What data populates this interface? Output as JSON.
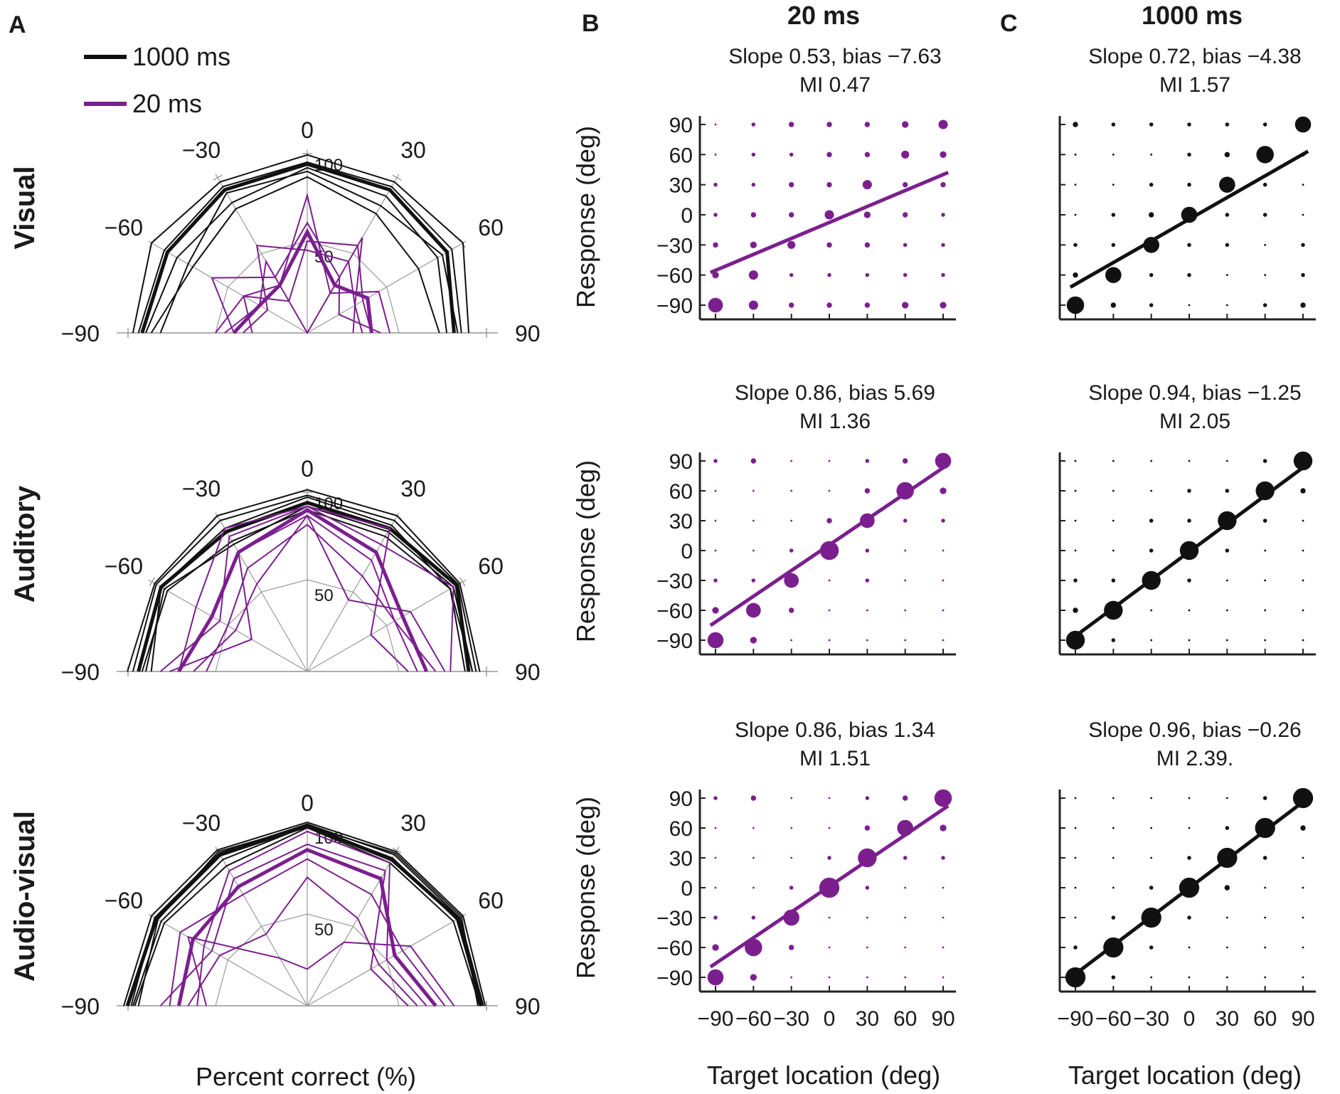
{
  "panel_labels": [
    "A",
    "B",
    "C"
  ],
  "column_titles": {
    "b": "20 ms",
    "c": "1000 ms"
  },
  "row_labels": [
    "Visual",
    "Auditory",
    "Audio-visual"
  ],
  "legend": {
    "items": [
      {
        "label": "1000 ms",
        "color": "#111111"
      },
      {
        "label": "20 ms",
        "color": "#7b1f8e"
      }
    ]
  },
  "colors": {
    "condition_1000ms": "#111111",
    "condition_20ms": "#7b1f8e",
    "grid": "#9a9a9a"
  },
  "polar_axis": {
    "angle_labels": [
      "0",
      "-30",
      "30",
      "-60",
      "60",
      "-90",
      "90"
    ],
    "radial_labels": [
      "100",
      "50"
    ],
    "xlabel": "Percent correct (%)"
  },
  "scatter_axis": {
    "ticks": [
      "-90",
      "-60",
      "-30",
      "0",
      "30",
      "60",
      "90"
    ],
    "ylabel": "Response (deg)",
    "xlabel": "Target location (deg)"
  },
  "chart_data": [
    {
      "type": "line",
      "coords": "polar",
      "panel": "A",
      "row": "Visual",
      "angles": [
        -90,
        -60,
        -30,
        0,
        30,
        60,
        90
      ],
      "rlim": [
        0,
        100
      ],
      "series": [
        {
          "name": "1000 ms",
          "kind": "mean",
          "values": [
            90,
            88,
            90,
            92,
            90,
            88,
            80
          ]
        },
        {
          "kind": "individual",
          "condition": "1000 ms",
          "values": [
            95,
            98,
            95,
            97,
            95,
            98,
            88
          ]
        },
        {
          "kind": "individual",
          "condition": "1000 ms",
          "values": [
            92,
            90,
            92,
            93,
            92,
            91,
            84
          ]
        },
        {
          "kind": "individual",
          "condition": "1000 ms",
          "values": [
            88,
            82,
            82,
            90,
            86,
            82,
            76
          ]
        },
        {
          "kind": "individual",
          "condition": "1000 ms",
          "values": [
            85,
            72,
            78,
            85,
            75,
            70,
            72
          ]
        },
        {
          "kind": "individual",
          "condition": "1000 ms",
          "values": [
            80,
            75,
            88,
            88,
            80,
            85,
            82
          ]
        },
        {
          "name": "20 ms",
          "kind": "mean",
          "values": [
            40,
            30,
            30,
            55,
            30,
            38,
            35
          ]
        },
        {
          "kind": "individual",
          "condition": "20 ms",
          "values": [
            35,
            25,
            55,
            45,
            45,
            30,
            30
          ]
        },
        {
          "kind": "individual",
          "condition": "20 ms",
          "values": [
            50,
            40,
            30,
            75,
            25,
            45,
            45
          ]
        },
        {
          "kind": "individual",
          "condition": "20 ms",
          "values": [
            30,
            40,
            20,
            50,
            55,
            35,
            35
          ]
        },
        {
          "kind": "individual",
          "condition": "20 ms",
          "values": [
            40,
            60,
            35,
            60,
            35,
            20,
            40
          ]
        },
        {
          "kind": "individual",
          "condition": "20 ms",
          "values": [
            45,
            30,
            45,
            0,
            60,
            30,
            25
          ]
        }
      ]
    },
    {
      "type": "line",
      "coords": "polar",
      "panel": "A",
      "row": "Auditory",
      "angles": [
        -90,
        -60,
        -30,
        0,
        30,
        60,
        90
      ],
      "rlim": [
        0,
        100
      ],
      "series": [
        {
          "name": "1000 ms",
          "kind": "mean",
          "values": [
            92,
            92,
            88,
            92,
            90,
            94,
            88
          ]
        },
        {
          "kind": "individual",
          "condition": "1000 ms",
          "values": [
            98,
            96,
            98,
            99,
            98,
            96,
            94
          ]
        },
        {
          "kind": "individual",
          "condition": "1000 ms",
          "values": [
            95,
            95,
            95,
            96,
            95,
            95,
            92
          ]
        },
        {
          "kind": "individual",
          "condition": "1000 ms",
          "values": [
            88,
            90,
            80,
            90,
            88,
            92,
            90
          ]
        },
        {
          "kind": "individual",
          "condition": "1000 ms",
          "values": [
            90,
            88,
            82,
            88,
            85,
            90,
            86
          ]
        },
        {
          "kind": "individual",
          "condition": "1000 ms",
          "values": [
            85,
            92,
            90,
            95,
            92,
            90,
            90
          ]
        },
        {
          "name": "20 ms",
          "kind": "mean",
          "values": [
            70,
            60,
            75,
            88,
            75,
            60,
            65
          ]
        },
        {
          "kind": "individual",
          "condition": "20 ms",
          "values": [
            62,
            45,
            55,
            85,
            70,
            55,
            60
          ]
        },
        {
          "kind": "individual",
          "condition": "20 ms",
          "values": [
            70,
            70,
            90,
            90,
            90,
            40,
            55
          ]
        },
        {
          "kind": "individual",
          "condition": "20 ms",
          "values": [
            55,
            50,
            65,
            80,
            60,
            55,
            70
          ]
        },
        {
          "kind": "individual",
          "condition": "20 ms",
          "values": [
            75,
            35,
            75,
            85,
            45,
            65,
            75
          ]
        },
        {
          "kind": "individual",
          "condition": "20 ms",
          "values": [
            80,
            55,
            85,
            90,
            80,
            92,
            78
          ]
        }
      ]
    },
    {
      "type": "line",
      "coords": "polar",
      "panel": "A",
      "row": "Audio-visual",
      "angles": [
        -90,
        -60,
        -30,
        0,
        30,
        60,
        90
      ],
      "rlim": [
        0,
        100
      ],
      "series": [
        {
          "name": "1000 ms",
          "kind": "mean",
          "values": [
            98,
            95,
            95,
            98,
            92,
            95,
            95
          ]
        },
        {
          "kind": "individual",
          "condition": "1000 ms",
          "values": [
            100,
            98,
            98,
            100,
            97,
            98,
            97
          ]
        },
        {
          "kind": "individual",
          "condition": "1000 ms",
          "values": [
            96,
            96,
            96,
            99,
            95,
            96,
            96
          ]
        },
        {
          "kind": "individual",
          "condition": "1000 ms",
          "values": [
            94,
            90,
            88,
            97,
            90,
            92,
            94
          ]
        },
        {
          "kind": "individual",
          "condition": "1000 ms",
          "values": [
            95,
            92,
            92,
            98,
            93,
            94,
            95
          ]
        },
        {
          "kind": "individual",
          "condition": "1000 ms",
          "values": [
            92,
            94,
            97,
            98,
            96,
            97,
            93
          ]
        },
        {
          "name": "20 ms",
          "kind": "mean",
          "values": [
            70,
            72,
            75,
            85,
            80,
            55,
            70
          ]
        },
        {
          "kind": "individual",
          "condition": "20 ms",
          "values": [
            60,
            65,
            85,
            95,
            90,
            50,
            65
          ]
        },
        {
          "kind": "individual",
          "condition": "20 ms",
          "values": [
            75,
            80,
            70,
            80,
            70,
            60,
            75
          ]
        },
        {
          "kind": "individual",
          "condition": "20 ms",
          "values": [
            65,
            55,
            45,
            70,
            55,
            45,
            60
          ]
        },
        {
          "kind": "individual",
          "condition": "20 ms",
          "values": [
            80,
            60,
            80,
            88,
            85,
            40,
            55
          ]
        },
        {
          "kind": "individual",
          "condition": "20 ms",
          "values": [
            55,
            75,
            30,
            20,
            40,
            65,
            80
          ]
        }
      ]
    },
    {
      "type": "scatter",
      "panel": "B",
      "row": "Visual",
      "condition": "20 ms",
      "title_lines": [
        "Slope 0.53, bias −7.63",
        "MI 0.47"
      ],
      "xlim": [
        -90,
        90
      ],
      "ylim": [
        -90,
        90
      ],
      "fit": {
        "slope": 0.53,
        "bias": -7.63
      },
      "x": [
        -90,
        -60,
        -30,
        0,
        30,
        60,
        90
      ],
      "y": [
        -90,
        -60,
        -30,
        0,
        30,
        60,
        90
      ],
      "counts": [
        [
          9,
          5,
          2,
          2,
          2,
          3,
          3
        ],
        [
          3,
          5,
          1,
          1,
          1,
          1,
          1
        ],
        [
          2,
          3,
          4,
          2,
          2,
          1,
          1
        ],
        [
          1,
          2,
          2,
          5,
          3,
          2,
          1
        ],
        [
          1,
          1,
          2,
          2,
          5,
          2,
          2
        ],
        [
          0,
          1,
          1,
          2,
          2,
          4,
          3
        ],
        [
          0,
          1,
          2,
          2,
          2,
          3,
          5
        ]
      ]
    },
    {
      "type": "scatter",
      "panel": "B",
      "row": "Auditory",
      "condition": "20 ms",
      "title_lines": [
        "Slope 0.86,  bias 5.69",
        "MI 1.36"
      ],
      "xlim": [
        -90,
        90
      ],
      "ylim": [
        -90,
        90
      ],
      "fit": {
        "slope": 0.86,
        "bias": 5.69
      },
      "x": [
        -90,
        -60,
        -30,
        0,
        30,
        60,
        90
      ],
      "y": [
        -90,
        -60,
        -30,
        0,
        30,
        60,
        90
      ],
      "counts": [
        [
          10,
          3,
          0,
          0,
          0,
          0,
          0
        ],
        [
          3,
          9,
          2,
          0,
          0,
          0,
          0
        ],
        [
          1,
          1,
          9,
          0,
          1,
          0,
          0
        ],
        [
          0,
          0,
          1,
          12,
          1,
          0,
          0
        ],
        [
          0,
          0,
          0,
          2,
          9,
          1,
          1
        ],
        [
          0,
          0,
          0,
          0,
          2,
          11,
          3
        ],
        [
          1,
          2,
          0,
          0,
          1,
          2,
          10
        ]
      ]
    },
    {
      "type": "scatter",
      "panel": "B",
      "row": "Audio-visual",
      "condition": "20 ms",
      "title_lines": [
        "Slope 0.86, bias 1.34",
        "MI 1.51"
      ],
      "xlim": [
        -90,
        90
      ],
      "ylim": [
        -90,
        90
      ],
      "fit": {
        "slope": 0.86,
        "bias": 1.34
      },
      "x": [
        -90,
        -60,
        -30,
        0,
        30,
        60,
        90
      ],
      "y": [
        -90,
        -60,
        -30,
        0,
        30,
        60,
        90
      ],
      "counts": [
        [
          10,
          3,
          0,
          0,
          0,
          0,
          0
        ],
        [
          3,
          11,
          2,
          0,
          0,
          0,
          0
        ],
        [
          1,
          1,
          10,
          0,
          0,
          0,
          0
        ],
        [
          0,
          0,
          1,
          13,
          1,
          0,
          0
        ],
        [
          0,
          0,
          0,
          1,
          12,
          1,
          1
        ],
        [
          0,
          0,
          0,
          0,
          2,
          10,
          3
        ],
        [
          1,
          2,
          0,
          0,
          1,
          2,
          11
        ]
      ]
    },
    {
      "type": "scatter",
      "panel": "C",
      "row": "Visual",
      "condition": "1000 ms",
      "title_lines": [
        "Slope 0.72, bias −4.38",
        "MI 1.57"
      ],
      "xlim": [
        -90,
        90
      ],
      "ylim": [
        -90,
        90
      ],
      "fit": {
        "slope": 0.72,
        "bias": -4.38
      },
      "x": [
        -90,
        -60,
        -30,
        0,
        30,
        60,
        90
      ],
      "y": [
        -90,
        -60,
        -30,
        0,
        30,
        60,
        90
      ],
      "counts": [
        [
          11,
          2,
          1,
          0,
          0,
          1,
          2
        ],
        [
          2,
          10,
          1,
          1,
          0,
          0,
          1
        ],
        [
          1,
          1,
          10,
          1,
          1,
          0,
          1
        ],
        [
          0,
          1,
          2,
          10,
          1,
          1,
          0
        ],
        [
          0,
          0,
          1,
          1,
          10,
          1,
          0
        ],
        [
          0,
          0,
          0,
          1,
          2,
          11,
          1
        ],
        [
          2,
          1,
          1,
          1,
          1,
          1,
          10
        ]
      ]
    },
    {
      "type": "scatter",
      "panel": "C",
      "row": "Auditory",
      "condition": "1000 ms",
      "title_lines": [
        "Slope 0.94, bias −1.25",
        "MI 2.05"
      ],
      "xlim": [
        -90,
        90
      ],
      "ylim": [
        -90,
        90
      ],
      "fit": {
        "slope": 0.94,
        "bias": -1.25
      },
      "x": [
        -90,
        -60,
        -30,
        0,
        30,
        60,
        90
      ],
      "y": [
        -90,
        -60,
        -30,
        0,
        30,
        60,
        90
      ],
      "counts": [
        [
          12,
          1,
          0,
          0,
          0,
          0,
          0
        ],
        [
          2,
          12,
          0,
          0,
          0,
          0,
          0
        ],
        [
          1,
          1,
          12,
          1,
          0,
          0,
          0
        ],
        [
          0,
          0,
          1,
          12,
          1,
          0,
          0
        ],
        [
          0,
          0,
          1,
          1,
          12,
          1,
          0
        ],
        [
          0,
          0,
          0,
          1,
          1,
          12,
          2
        ],
        [
          0,
          0,
          0,
          0,
          0,
          1,
          12
        ]
      ]
    },
    {
      "type": "scatter",
      "panel": "C",
      "row": "Audio-visual",
      "condition": "1000 ms",
      "title_lines": [
        "Slope 0.96, bias −0.26",
        "MI 2.39."
      ],
      "xlim": [
        -90,
        90
      ],
      "ylim": [
        -90,
        90
      ],
      "fit": {
        "slope": 0.96,
        "bias": -0.26
      },
      "x": [
        -90,
        -60,
        -30,
        0,
        30,
        60,
        90
      ],
      "y": [
        -90,
        -60,
        -30,
        0,
        30,
        60,
        90
      ],
      "counts": [
        [
          13,
          1,
          0,
          0,
          0,
          0,
          0
        ],
        [
          1,
          13,
          1,
          0,
          0,
          0,
          0
        ],
        [
          0,
          1,
          13,
          1,
          0,
          0,
          0
        ],
        [
          0,
          0,
          1,
          13,
          2,
          0,
          0
        ],
        [
          0,
          0,
          0,
          1,
          13,
          1,
          0
        ],
        [
          0,
          0,
          0,
          0,
          1,
          13,
          2
        ],
        [
          0,
          0,
          0,
          0,
          0,
          1,
          13
        ]
      ]
    }
  ]
}
